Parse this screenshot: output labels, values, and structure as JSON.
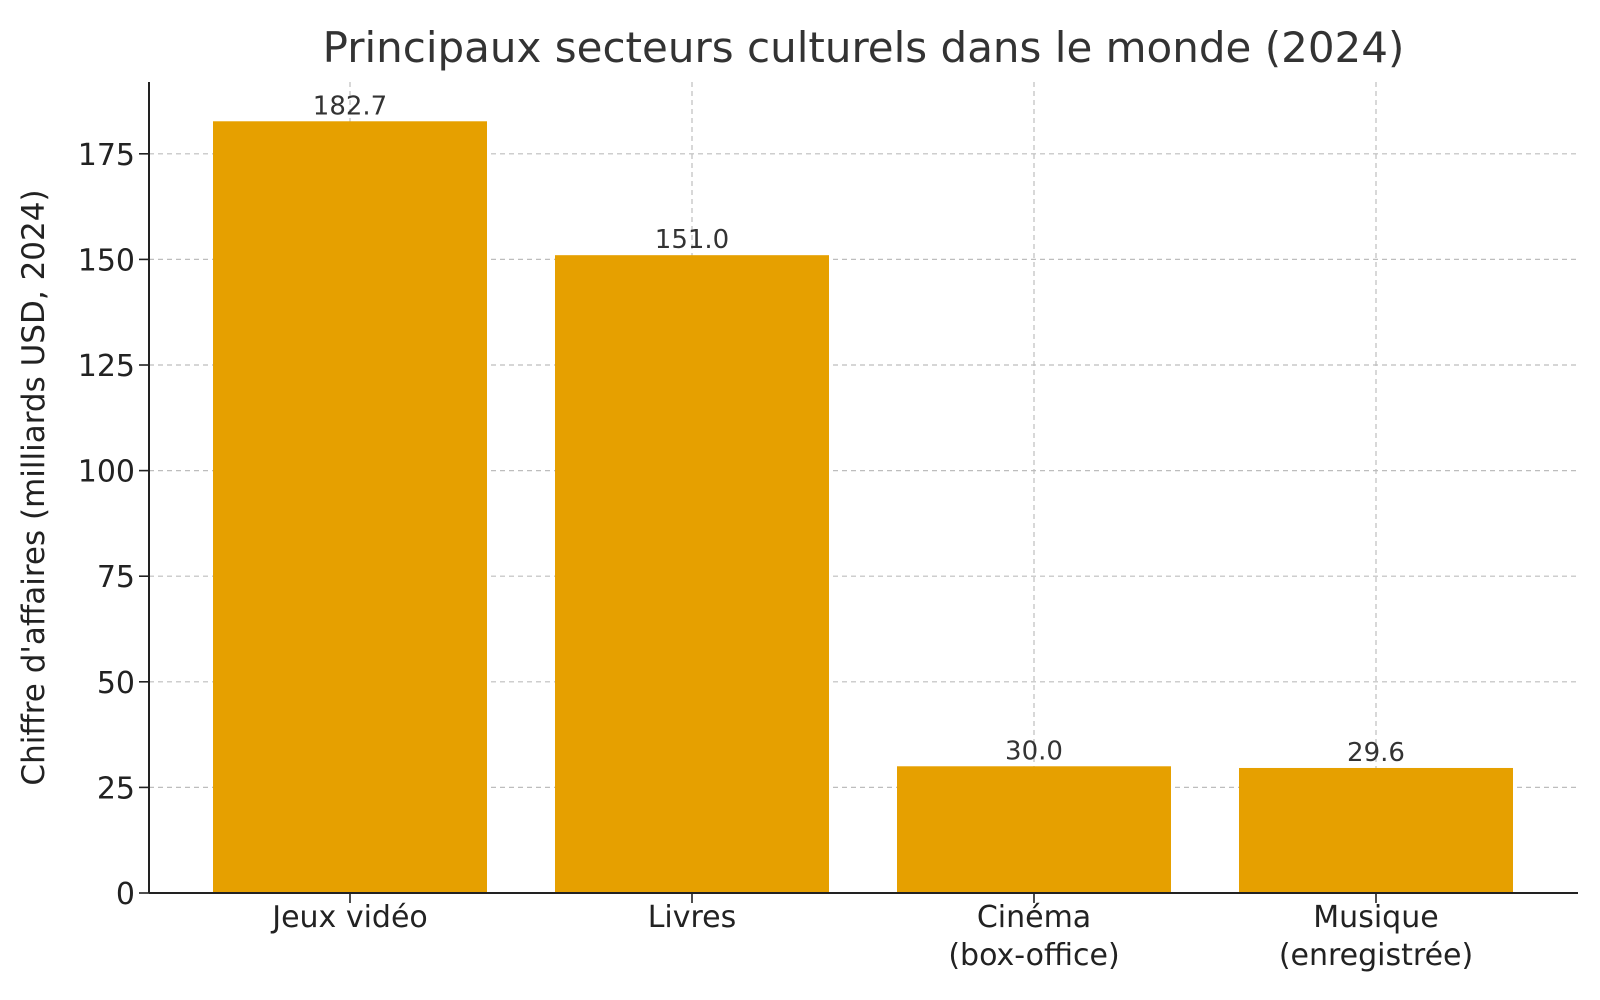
{
  "chart_data": {
    "type": "bar",
    "title": "Principaux secteurs culturels dans le monde (2024)",
    "xlabel": "",
    "ylabel": "Chiffre d'affaires (milliards USD, 2024)",
    "categories": [
      [
        "Jeux vidéo"
      ],
      [
        "Livres"
      ],
      [
        "Cinéma",
        "(box-office)"
      ],
      [
        "Musique",
        "(enregistrée)"
      ]
    ],
    "values": [
      182.7,
      151.0,
      30.0,
      29.6
    ],
    "data_labels": [
      "182.7",
      "151.0",
      "30.0",
      "29.6"
    ],
    "ylim": [
      0,
      192
    ],
    "yticks": [
      0,
      25,
      50,
      75,
      100,
      125,
      150,
      175
    ],
    "grid": true,
    "bar_color": "#E6A000",
    "show_data_labels": true
  }
}
